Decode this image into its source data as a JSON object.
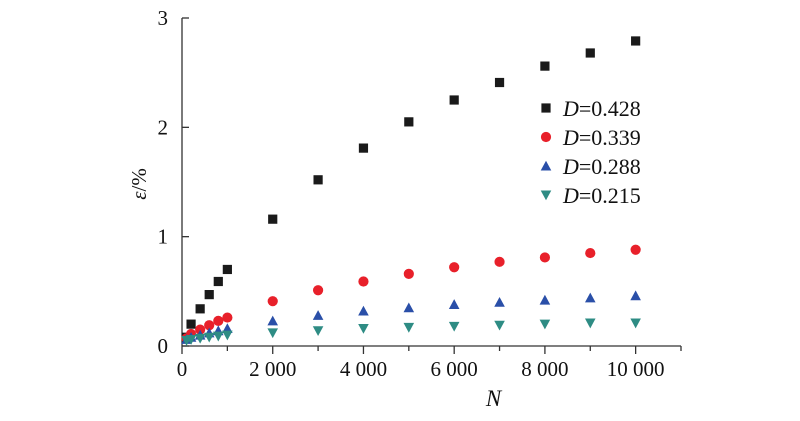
{
  "chart_data": {
    "type": "scatter",
    "xlabel": "N",
    "ylabel_var": "ε",
    "ylabel_unit": "/%",
    "xlim": [
      0,
      11000
    ],
    "ylim": [
      0,
      3
    ],
    "xticks": [
      0,
      2000,
      4000,
      6000,
      8000,
      10000
    ],
    "xtick_labels": [
      "0",
      "2 000",
      "4 000",
      "6 000",
      "8 000",
      "10 000"
    ],
    "yticks": [
      0,
      1,
      2,
      3
    ],
    "ytick_labels": [
      "0",
      "1",
      "2",
      "3"
    ],
    "legend_position": "right",
    "series": [
      {
        "name": "D=0.428",
        "name_var": "D",
        "name_value": "=0.428",
        "marker": "square",
        "color": "#1a1a1a",
        "x": [
          100,
          200,
          400,
          600,
          800,
          1000,
          2000,
          3000,
          4000,
          5000,
          6000,
          7000,
          8000,
          9000,
          10000
        ],
        "y": [
          0.08,
          0.2,
          0.34,
          0.47,
          0.59,
          0.7,
          1.16,
          1.52,
          1.81,
          2.05,
          2.25,
          2.41,
          2.56,
          2.68,
          2.79
        ]
      },
      {
        "name": "D=0.339",
        "name_var": "D",
        "name_value": "=0.339",
        "marker": "circle",
        "color": "#e8202a",
        "x": [
          100,
          200,
          400,
          600,
          800,
          1000,
          2000,
          3000,
          4000,
          5000,
          6000,
          7000,
          8000,
          9000,
          10000
        ],
        "y": [
          0.07,
          0.11,
          0.15,
          0.19,
          0.23,
          0.26,
          0.41,
          0.51,
          0.59,
          0.66,
          0.72,
          0.77,
          0.81,
          0.85,
          0.88
        ]
      },
      {
        "name": "D=0.288",
        "name_var": "D",
        "name_value": "=0.288",
        "marker": "triangle-up",
        "color": "#2a4fa8",
        "x": [
          100,
          200,
          400,
          600,
          800,
          1000,
          2000,
          3000,
          4000,
          5000,
          6000,
          7000,
          8000,
          9000,
          10000
        ],
        "y": [
          0.06,
          0.08,
          0.1,
          0.12,
          0.14,
          0.16,
          0.23,
          0.28,
          0.32,
          0.35,
          0.38,
          0.4,
          0.42,
          0.44,
          0.46
        ]
      },
      {
        "name": "D=0.215",
        "name_var": "D",
        "name_value": "=0.215",
        "marker": "triangle-down",
        "color": "#2e8c84",
        "x": [
          100,
          200,
          400,
          600,
          800,
          1000,
          2000,
          3000,
          4000,
          5000,
          6000,
          7000,
          8000,
          9000,
          10000
        ],
        "y": [
          0.05,
          0.06,
          0.07,
          0.08,
          0.09,
          0.1,
          0.12,
          0.14,
          0.16,
          0.17,
          0.18,
          0.19,
          0.2,
          0.21,
          0.21
        ]
      }
    ]
  }
}
